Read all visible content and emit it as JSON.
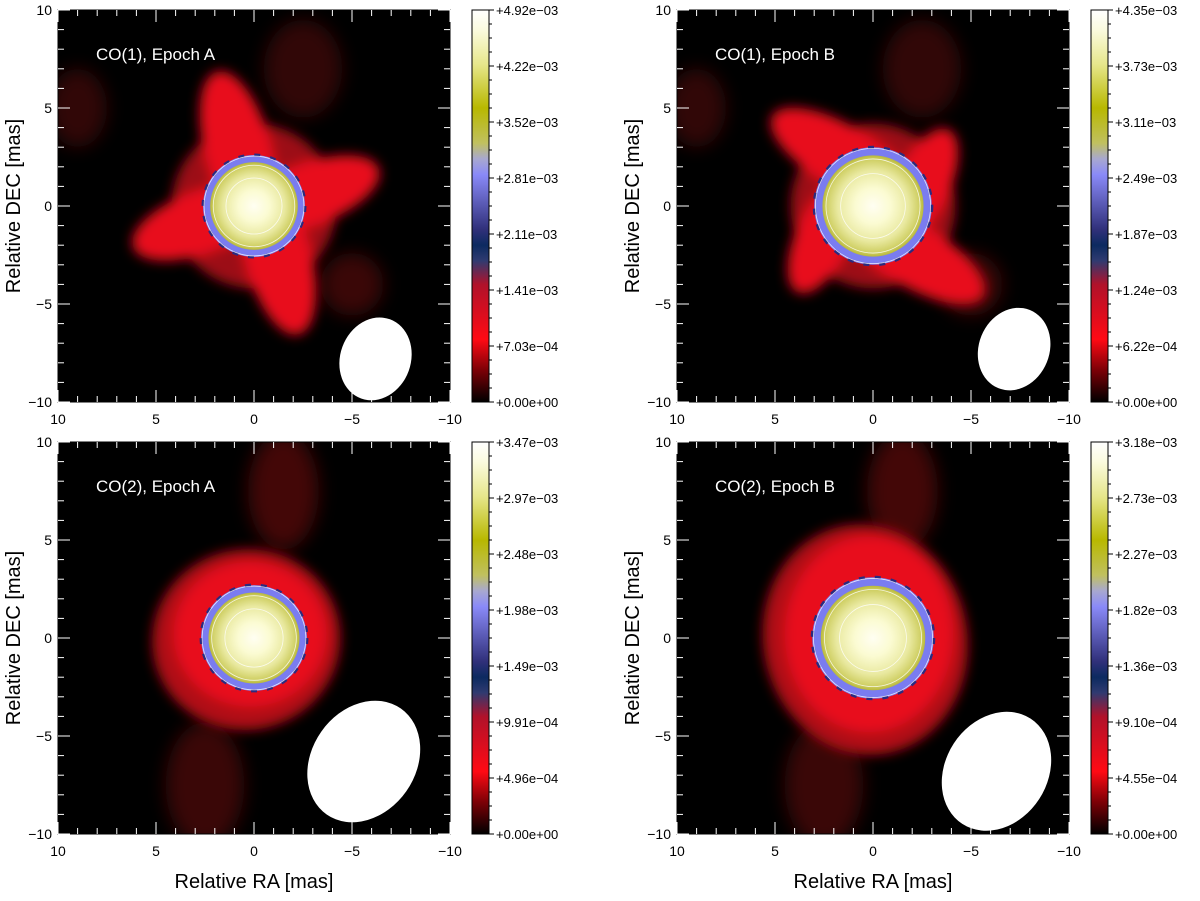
{
  "figure": {
    "xlabel": "Relative RA [mas]",
    "ylabel": "Relative DEC [mas]"
  },
  "chart_data": [
    {
      "type": "heatmap",
      "title": "CO(1), Epoch A",
      "xlabel": "Relative RA [mas]",
      "ylabel": "Relative DEC [mas]",
      "xlim": [
        10,
        -10
      ],
      "ylim": [
        -10,
        10
      ],
      "x_ticks": [
        "10",
        "5",
        "0",
        "−5",
        "−10"
      ],
      "y_ticks": [
        "−10",
        "−5",
        "0",
        "5",
        "10"
      ],
      "colorbar": {
        "min": 0,
        "max": 0.00492,
        "tick_labels": [
          "+4.92e−03",
          "+4.22e−03",
          "+3.52e−03",
          "+2.81e−03",
          "+2.11e−03",
          "+1.41e−03",
          "+7.03e−04",
          "+0.00e+00"
        ]
      },
      "source": {
        "disk_radius_mas": 2.6,
        "halo": "cross",
        "halo_orientation": "diagonal"
      },
      "beam": {
        "ra_mas": -6.2,
        "dec_mas": -7.8,
        "major_mas": 4.3,
        "minor_mas": 3.6,
        "pa_deg": 20
      },
      "colors": {
        "background": "#000000",
        "halo": "#e8101c",
        "ring": "#7a7cf0",
        "core": "#fffde0",
        "beam": "#ffffff"
      }
    },
    {
      "type": "heatmap",
      "title": "CO(1), Epoch B",
      "xlabel": "Relative RA [mas]",
      "ylabel": "Relative DEC [mas]",
      "xlim": [
        10,
        -10
      ],
      "ylim": [
        -10,
        10
      ],
      "x_ticks": [
        "10",
        "5",
        "0",
        "−5",
        "−10"
      ],
      "y_ticks": [
        "−10",
        "−5",
        "0",
        "5",
        "10"
      ],
      "colorbar": {
        "min": 0,
        "max": 0.00435,
        "tick_labels": [
          "+4.35e−03",
          "+3.73e−03",
          "+3.11e−03",
          "+2.49e−03",
          "+1.87e−03",
          "+1.24e−03",
          "+6.22e−04",
          "+0.00e+00"
        ]
      },
      "source": {
        "disk_radius_mas": 3.0,
        "halo": "cross",
        "halo_orientation": "offset"
      },
      "beam": {
        "ra_mas": -7.2,
        "dec_mas": -7.3,
        "major_mas": 4.3,
        "minor_mas": 3.6,
        "pa_deg": 22
      },
      "colors": {
        "background": "#000000",
        "halo": "#e8101c",
        "ring": "#7a7cf0",
        "core": "#fffde0",
        "beam": "#ffffff"
      }
    },
    {
      "type": "heatmap",
      "title": "CO(2), Epoch A",
      "xlabel": "Relative RA [mas]",
      "ylabel": "Relative DEC [mas]",
      "xlim": [
        10,
        -10
      ],
      "ylim": [
        -10,
        10
      ],
      "x_ticks": [
        "10",
        "5",
        "0",
        "−5",
        "−10"
      ],
      "y_ticks": [
        "−10",
        "−5",
        "0",
        "5",
        "10"
      ],
      "colorbar": {
        "min": 0,
        "max": 0.00347,
        "tick_labels": [
          "+3.47e−03",
          "+2.97e−03",
          "+2.48e−03",
          "+1.98e−03",
          "+1.49e−03",
          "+9.91e−04",
          "+4.96e−04",
          "+0.00e+00"
        ]
      },
      "source": {
        "disk_radius_mas": 2.7,
        "halo": "ellipse",
        "halo_radii_mas": [
          4.8,
          4.6
        ]
      },
      "beam": {
        "ra_mas": -5.6,
        "dec_mas": -6.3,
        "major_mas": 6.6,
        "minor_mas": 5.3,
        "pa_deg": 35
      },
      "colors": {
        "background": "#000000",
        "halo": "#e8101c",
        "ring": "#7a7cf0",
        "core": "#fffde0",
        "beam": "#ffffff"
      }
    },
    {
      "type": "heatmap",
      "title": "CO(2), Epoch B",
      "xlabel": "Relative RA [mas]",
      "ylabel": "Relative DEC [mas]",
      "xlim": [
        10,
        -10
      ],
      "ylim": [
        -10,
        10
      ],
      "x_ticks": [
        "10",
        "5",
        "0",
        "−5",
        "−10"
      ],
      "y_ticks": [
        "−10",
        "−5",
        "0",
        "5",
        "10"
      ],
      "colorbar": {
        "min": 0,
        "max": 0.00318,
        "tick_labels": [
          "+3.18e−03",
          "+2.73e−03",
          "+2.27e−03",
          "+1.82e−03",
          "+1.36e−03",
          "+9.10e−04",
          "+4.55e−04",
          "+0.00e+00"
        ]
      },
      "source": {
        "disk_radius_mas": 3.1,
        "halo": "ellipse",
        "halo_radii_mas": [
          5.2,
          5.9
        ]
      },
      "beam": {
        "ra_mas": -6.3,
        "dec_mas": -6.8,
        "major_mas": 6.4,
        "minor_mas": 5.2,
        "pa_deg": 33
      },
      "colors": {
        "background": "#000000",
        "halo": "#e8101c",
        "ring": "#7a7cf0",
        "core": "#fffde0",
        "beam": "#ffffff"
      }
    }
  ]
}
